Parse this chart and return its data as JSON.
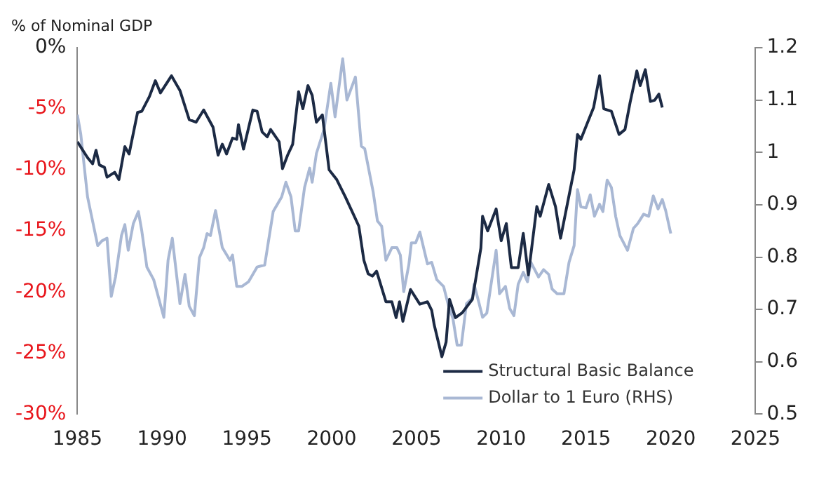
{
  "chart_data": {
    "type": "line",
    "ylabel": "% of Nominal GDP",
    "legend": "bottom right",
    "grid": false,
    "marker": "none",
    "line_style": "solid",
    "xlim": [
      1985,
      2025
    ],
    "xticks": [
      1985,
      1990,
      1995,
      2000,
      2005,
      2010,
      2015,
      2020,
      2025
    ],
    "ylim": [
      -30,
      0
    ],
    "yticks": [
      {
        "value": 0,
        "label": "0%"
      },
      {
        "value": -5,
        "label": "-5%"
      },
      {
        "value": -10,
        "label": "-10%"
      },
      {
        "value": -15,
        "label": "-15%"
      },
      {
        "value": -20,
        "label": "-20%"
      },
      {
        "value": -25,
        "label": "-25%"
      },
      {
        "value": -30,
        "label": "-30%"
      }
    ],
    "y2lim": [
      0.5,
      1.2
    ],
    "y2ticks": [
      0.5,
      0.6,
      0.7,
      0.8,
      0.9,
      1,
      1.1,
      1.2
    ],
    "series": [
      {
        "name": "Structural Basic Balance",
        "color": "#1c2a44",
        "x": [
          1985,
          1985.6,
          1985.9,
          1986.1,
          1986.3,
          1986.6,
          1986.75,
          1987.2,
          1987.45,
          1987.8,
          1988.05,
          1988.55,
          1988.8,
          1989.25,
          1989.6,
          1989.9,
          1990.55,
          1991.05,
          1991.6,
          1992,
          1992.45,
          1993,
          1993.3,
          1993.55,
          1993.8,
          1994.15,
          1994.4,
          1994.5,
          1994.8,
          1995.35,
          1995.6,
          1995.9,
          1996.2,
          1996.4,
          1996.9,
          1997.1,
          1997.4,
          1997.7,
          1998.05,
          1998.3,
          1998.6,
          1998.85,
          1999.1,
          1999.45,
          1999.85,
          2000.3,
          2000.8,
          2001.6,
          2001.9,
          2002.15,
          2002.4,
          2002.65,
          2003.2,
          2003.55,
          2003.8,
          2004,
          2004.2,
          2004.65,
          2005.2,
          2005.65,
          2005.9,
          2006.05,
          2006.5,
          2006.75,
          2006.95,
          2007.3,
          2007.7,
          2008.3,
          2008.8,
          2008.9,
          2009.2,
          2009.7,
          2010,
          2010.3,
          2010.6,
          2011,
          2011.3,
          2011.6,
          2012.1,
          2012.3,
          2012.8,
          2013.2,
          2013.5,
          2014.3,
          2014.5,
          2014.7,
          2015.1,
          2015.45,
          2015.8,
          2016.05,
          2016.5,
          2016.95,
          2017.3,
          2017.6,
          2018,
          2018.2,
          2018.5,
          2018.8,
          2019.05,
          2019.3,
          2019.5
        ],
        "values": [
          -7.7,
          -9.0,
          -9.5,
          -8.4,
          -9.6,
          -9.8,
          -10.6,
          -10.2,
          -10.8,
          -8.1,
          -8.7,
          -5.3,
          -5.2,
          -4.0,
          -2.7,
          -3.7,
          -2.3,
          -3.5,
          -5.9,
          -6.1,
          -5.1,
          -6.5,
          -8.8,
          -7.9,
          -8.7,
          -7.4,
          -7.5,
          -6.3,
          -8.3,
          -5.1,
          -5.2,
          -6.9,
          -7.3,
          -6.7,
          -7.7,
          -9.9,
          -8.8,
          -7.9,
          -3.6,
          -5.0,
          -3.1,
          -3.9,
          -6.1,
          -5.5,
          -10.0,
          -10.8,
          -12.2,
          -14.6,
          -17.4,
          -18.5,
          -18.7,
          -18.3,
          -20.8,
          -20.8,
          -22.1,
          -20.8,
          -22.4,
          -19.8,
          -21.0,
          -20.8,
          -21.5,
          -22.7,
          -25.3,
          -24.1,
          -20.6,
          -22.1,
          -21.7,
          -20.6,
          -16.4,
          -13.8,
          -15.0,
          -13.2,
          -15.8,
          -14.4,
          -18.0,
          -18.0,
          -15.2,
          -18.6,
          -13.0,
          -13.8,
          -11.2,
          -13.0,
          -15.6,
          -10.0,
          -7.1,
          -7.5,
          -6.1,
          -4.9,
          -2.3,
          -5.0,
          -5.2,
          -7.1,
          -6.7,
          -4.5,
          -1.9,
          -3.1,
          -1.8,
          -4.4,
          -4.3,
          -3.8,
          -4.9
        ]
      },
      {
        "name": "Dollar to 1 Euro (RHS)",
        "color": "#a9b8d4",
        "axis": "y2",
        "x": [
          1985,
          1985.2,
          1985.6,
          1986.2,
          1986.45,
          1986.75,
          1987,
          1987.25,
          1987.6,
          1987.8,
          1988,
          1988.3,
          1988.6,
          1988.8,
          1989.1,
          1989.5,
          1990.1,
          1990.35,
          1990.6,
          1991.05,
          1991.35,
          1991.6,
          1991.9,
          1992.2,
          1992.45,
          1992.65,
          1992.85,
          1993.15,
          1993.55,
          1994,
          1994.15,
          1994.4,
          1994.7,
          1995.1,
          1995.6,
          1996.05,
          1996.3,
          1996.55,
          1997.05,
          1997.3,
          1997.6,
          1997.85,
          1998.05,
          1998.4,
          1998.7,
          1998.85,
          1999.1,
          1999.55,
          1999.95,
          2000.2,
          2000.65,
          2000.9,
          2001.4,
          2001.75,
          2001.95,
          2002.45,
          2002.7,
          2002.95,
          2003.2,
          2003.55,
          2003.85,
          2004.05,
          2004.25,
          2004.55,
          2004.7,
          2004.95,
          2005.2,
          2005.65,
          2005.9,
          2006.2,
          2006.6,
          2006.9,
          2007.15,
          2007.4,
          2007.65,
          2007.95,
          2008.3,
          2008.4,
          2008.7,
          2008.9,
          2009.15,
          2009.7,
          2009.9,
          2010.25,
          2010.5,
          2010.75,
          2011,
          2011.3,
          2011.55,
          2011.75,
          2012.2,
          2012.5,
          2012.8,
          2013,
          2013.3,
          2013.7,
          2014,
          2014.3,
          2014.5,
          2014.7,
          2015,
          2015.25,
          2015.5,
          2015.8,
          2016,
          2016.25,
          2016.5,
          2016.75,
          2017,
          2017.45,
          2017.8,
          2018.05,
          2018.4,
          2018.7,
          2018.97,
          2019.25,
          2019.5,
          2019.7,
          2020
        ],
        "values": [
          1.072,
          1.035,
          0.915,
          0.822,
          0.831,
          0.836,
          0.725,
          0.762,
          0.841,
          0.862,
          0.813,
          0.864,
          0.887,
          0.85,
          0.781,
          0.757,
          0.685,
          0.794,
          0.836,
          0.711,
          0.767,
          0.706,
          0.688,
          0.799,
          0.818,
          0.845,
          0.841,
          0.889,
          0.818,
          0.794,
          0.804,
          0.744,
          0.744,
          0.753,
          0.781,
          0.785,
          0.836,
          0.887,
          0.915,
          0.943,
          0.915,
          0.85,
          0.85,
          0.933,
          0.97,
          0.943,
          0.998,
          1.044,
          1.132,
          1.068,
          1.179,
          1.1,
          1.144,
          1.012,
          1.007,
          0.924,
          0.869,
          0.859,
          0.794,
          0.818,
          0.818,
          0.804,
          0.734,
          0.785,
          0.827,
          0.827,
          0.848,
          0.787,
          0.79,
          0.757,
          0.744,
          0.706,
          0.683,
          0.632,
          0.632,
          0.711,
          0.722,
          0.748,
          0.711,
          0.685,
          0.693,
          0.813,
          0.73,
          0.744,
          0.702,
          0.688,
          0.748,
          0.771,
          0.753,
          0.79,
          0.762,
          0.776,
          0.767,
          0.739,
          0.73,
          0.73,
          0.79,
          0.822,
          0.929,
          0.896,
          0.894,
          0.919,
          0.878,
          0.901,
          0.887,
          0.947,
          0.933,
          0.878,
          0.841,
          0.813,
          0.855,
          0.864,
          0.882,
          0.878,
          0.917,
          0.892,
          0.91,
          0.889,
          0.845
        ]
      }
    ]
  }
}
